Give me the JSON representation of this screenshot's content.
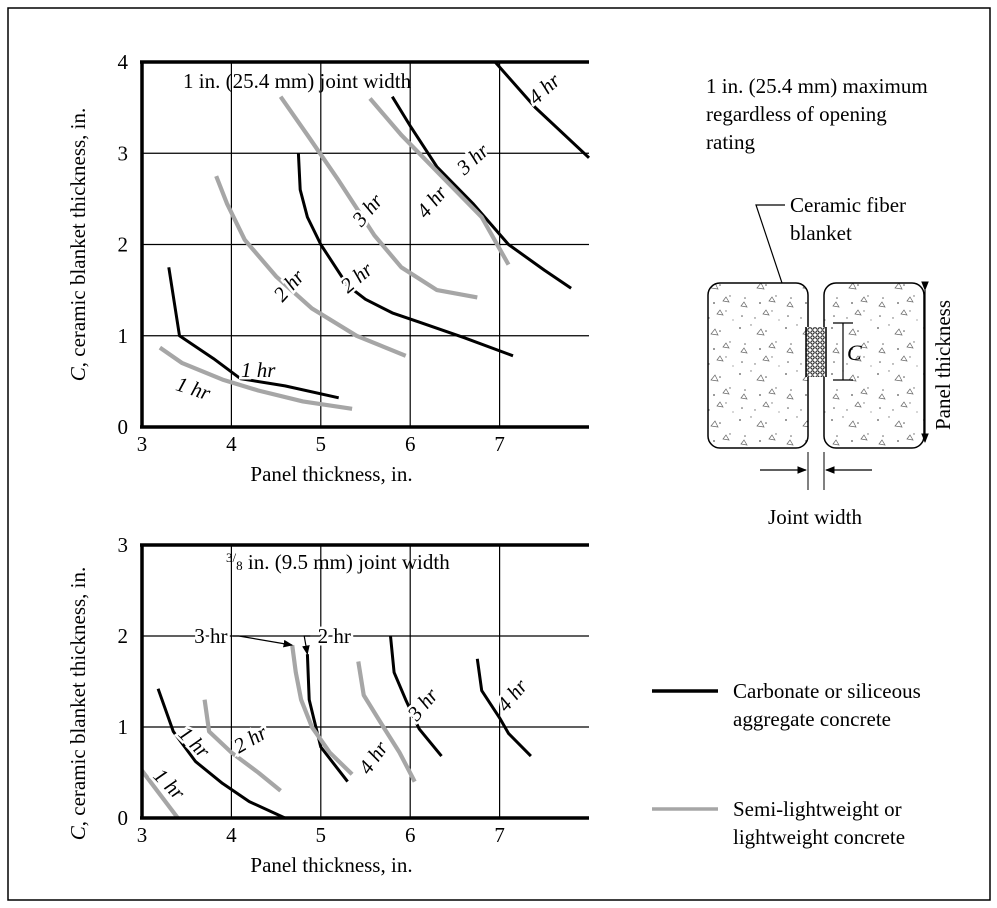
{
  "colors": {
    "black_series": "#000000",
    "gray_series": "#a6a6a6",
    "frame": "#000000"
  },
  "legend": {
    "position": "bottom-right",
    "items": [
      {
        "key": "black",
        "line1": "Carbonate or siliceous",
        "line2": "aggregate concrete"
      },
      {
        "key": "gray",
        "line1": "Semi-lightweight or",
        "line2": "lightweight concrete"
      }
    ]
  },
  "detail": {
    "note_line1": "1 in. (25.4 mm) maximum",
    "note_line2": "regardless of opening",
    "note_line3": "rating",
    "blanket_line1": "Ceramic fiber",
    "blanket_line2": "blanket",
    "c_label": "C",
    "panel_label": "Panel thickness",
    "joint_label": "Joint width"
  },
  "chart_data": [
    {
      "type": "line",
      "title": "1 in. (25.4 mm) joint width",
      "xlabel": "Panel thickness, in.",
      "ylabel_italic": "C",
      "ylabel_rest": ", ceramic blanket thickness, in.",
      "xlim": [
        3,
        8
      ],
      "ylim": [
        0,
        4
      ],
      "xticks": [
        3,
        4,
        5,
        6,
        7
      ],
      "yticks": [
        0,
        1,
        2,
        3,
        4
      ],
      "grid": true,
      "series": [
        {
          "name": "1 hr",
          "color": "black",
          "points": [
            [
              3.3,
              1.75
            ],
            [
              3.42,
              1.0
            ],
            [
              3.8,
              0.75
            ],
            [
              4.1,
              0.53
            ],
            [
              4.6,
              0.45
            ],
            [
              5.2,
              0.32
            ]
          ]
        },
        {
          "name": "2 hr",
          "color": "black",
          "points": [
            [
              4.75,
              3.0
            ],
            [
              4.77,
              2.6
            ],
            [
              4.85,
              2.3
            ],
            [
              5.0,
              2.0
            ],
            [
              5.3,
              1.55
            ],
            [
              5.5,
              1.4
            ],
            [
              5.8,
              1.25
            ],
            [
              6.1,
              1.15
            ],
            [
              6.6,
              0.98
            ],
            [
              7.15,
              0.78
            ]
          ]
        },
        {
          "name": "3 hr",
          "color": "black",
          "points": [
            [
              5.8,
              3.62
            ],
            [
              6.0,
              3.3
            ],
            [
              6.3,
              2.85
            ],
            [
              6.7,
              2.45
            ],
            [
              7.1,
              2.0
            ],
            [
              7.5,
              1.72
            ],
            [
              7.8,
              1.52
            ]
          ]
        },
        {
          "name": "4 hr",
          "color": "black",
          "points": [
            [
              6.95,
              4.0
            ],
            [
              7.4,
              3.5
            ],
            [
              8.0,
              2.95
            ]
          ]
        },
        {
          "name": "1 hr",
          "color": "gray",
          "points": [
            [
              3.2,
              0.87
            ],
            [
              3.45,
              0.7
            ],
            [
              3.9,
              0.52
            ],
            [
              4.3,
              0.4
            ],
            [
              4.8,
              0.28
            ],
            [
              5.35,
              0.2
            ]
          ]
        },
        {
          "name": "2 hr",
          "color": "gray",
          "points": [
            [
              3.83,
              2.75
            ],
            [
              3.95,
              2.45
            ],
            [
              4.15,
              2.05
            ],
            [
              4.5,
              1.65
            ],
            [
              4.9,
              1.3
            ],
            [
              5.4,
              1.0
            ],
            [
              5.95,
              0.78
            ]
          ]
        },
        {
          "name": "3 hr",
          "color": "gray",
          "points": [
            [
              4.55,
              3.62
            ],
            [
              4.85,
              3.2
            ],
            [
              5.2,
              2.7
            ],
            [
              5.6,
              2.1
            ],
            [
              5.9,
              1.75
            ],
            [
              6.3,
              1.5
            ],
            [
              6.75,
              1.42
            ]
          ]
        },
        {
          "name": "4 hr",
          "color": "gray",
          "points": [
            [
              5.55,
              3.6
            ],
            [
              5.9,
              3.2
            ],
            [
              6.3,
              2.8
            ],
            [
              6.8,
              2.3
            ],
            [
              7.1,
              1.78
            ]
          ]
        }
      ],
      "curve_labels": [
        {
          "text": "1 hr",
          "x": 4.3,
          "y": 0.55,
          "angle": 0
        },
        {
          "text": "2 hr",
          "x": 5.45,
          "y": 1.58,
          "angle": -40
        },
        {
          "text": "3 hr",
          "x": 6.75,
          "y": 2.88,
          "angle": -42
        },
        {
          "text": "4 hr",
          "x": 7.55,
          "y": 3.65,
          "angle": -42
        },
        {
          "text": "1 hr",
          "x": 3.55,
          "y": 0.35,
          "angle": 18
        },
        {
          "text": "2 hr",
          "x": 4.7,
          "y": 1.5,
          "angle": -48
        },
        {
          "text": "3 hr",
          "x": 5.58,
          "y": 2.33,
          "angle": -50
        },
        {
          "text": "4 hr",
          "x": 6.3,
          "y": 2.42,
          "angle": -50
        }
      ]
    },
    {
      "type": "line",
      "title_sup": "3",
      "title_sub": "8",
      "title_rest": " in. (9.5 mm) joint width",
      "xlabel": "Panel thickness, in.",
      "ylabel_italic": "C",
      "ylabel_rest": ", ceramic blanket thickness, in.",
      "xlim": [
        3,
        8
      ],
      "ylim": [
        0,
        3
      ],
      "xticks": [
        3,
        4,
        5,
        6,
        7
      ],
      "yticks": [
        0,
        1,
        2,
        3
      ],
      "grid": true,
      "series": [
        {
          "name": "1 hr",
          "color": "black",
          "points": [
            [
              3.18,
              1.42
            ],
            [
              3.35,
              0.95
            ],
            [
              3.6,
              0.62
            ],
            [
              3.9,
              0.38
            ],
            [
              4.2,
              0.18
            ],
            [
              4.6,
              0.0
            ]
          ]
        },
        {
          "name": "2 hr",
          "color": "black",
          "points": [
            [
              4.85,
              1.8
            ],
            [
              4.87,
              1.3
            ],
            [
              4.92,
              1.1
            ],
            [
              5.0,
              0.78
            ],
            [
              5.3,
              0.4
            ]
          ]
        },
        {
          "name": "3 hr",
          "color": "black",
          "points": [
            [
              5.78,
              2.0
            ],
            [
              5.82,
              1.6
            ],
            [
              5.95,
              1.3
            ],
            [
              6.1,
              0.98
            ],
            [
              6.35,
              0.68
            ]
          ]
        },
        {
          "name": "4 hr",
          "color": "black",
          "points": [
            [
              6.75,
              1.75
            ],
            [
              6.8,
              1.4
            ],
            [
              7.0,
              1.1
            ],
            [
              7.1,
              0.93
            ],
            [
              7.35,
              0.68
            ]
          ]
        },
        {
          "name": "1 hr",
          "color": "gray",
          "points": [
            [
              3.0,
              0.52
            ],
            [
              3.4,
              0.0
            ]
          ]
        },
        {
          "name": "2 hr",
          "color": "gray",
          "points": [
            [
              3.7,
              1.3
            ],
            [
              3.75,
              0.95
            ],
            [
              4.0,
              0.72
            ],
            [
              4.3,
              0.5
            ],
            [
              4.55,
              0.3
            ]
          ]
        },
        {
          "name": "3 hr",
          "color": "gray",
          "points": [
            [
              4.68,
              1.9
            ],
            [
              4.72,
              1.6
            ],
            [
              4.78,
              1.3
            ],
            [
              4.9,
              1.0
            ],
            [
              5.1,
              0.72
            ],
            [
              5.35,
              0.48
            ]
          ]
        },
        {
          "name": "4 hr",
          "color": "gray",
          "points": [
            [
              5.42,
              1.72
            ],
            [
              5.48,
              1.35
            ],
            [
              5.7,
              1.0
            ],
            [
              5.88,
              0.72
            ],
            [
              6.05,
              0.4
            ]
          ]
        }
      ],
      "curve_labels": [
        {
          "text": "1 hr",
          "x": 3.53,
          "y": 0.78,
          "angle": 45
        },
        {
          "text": "2 hr",
          "x": 4.25,
          "y": 0.8,
          "angle": -30
        },
        {
          "text": "3 hr",
          "x": 6.2,
          "y": 1.2,
          "angle": -50
        },
        {
          "text": "4 hr",
          "x": 7.2,
          "y": 1.3,
          "angle": -50
        },
        {
          "text": "1 hr",
          "x": 3.25,
          "y": 0.32,
          "angle": 45
        },
        {
          "text": "4 hr",
          "x": 5.65,
          "y": 0.62,
          "angle": -55
        }
      ],
      "callouts": [
        {
          "text": "3 hr",
          "text_x": 3.77,
          "text_y": 2.0,
          "to_x": 4.68,
          "to_y": 1.9
        },
        {
          "text": "2 hr",
          "text_x": 5.15,
          "text_y": 2.0,
          "to_x": 4.85,
          "to_y": 1.8
        }
      ]
    }
  ]
}
